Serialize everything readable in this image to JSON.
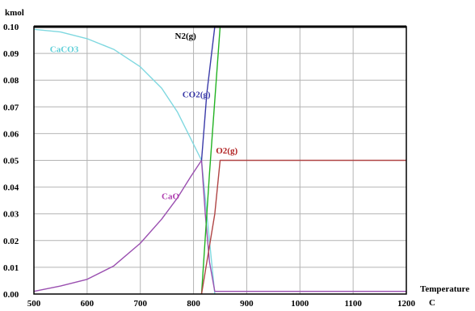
{
  "chart_data": {
    "type": "line",
    "title": "",
    "ylabel": "kmol",
    "xlabel": "Temperature",
    "xlabel_unit": "C",
    "xlim": [
      500,
      1200
    ],
    "ylim": [
      0,
      0.1
    ],
    "x_ticks": [
      "500",
      "600",
      "700",
      "800",
      "900",
      "1000",
      "1100",
      "1200"
    ],
    "y_ticks": [
      "0.00",
      "0.01",
      "0.02",
      "0.03",
      "0.04",
      "0.05",
      "0.06",
      "0.07",
      "0.08",
      "0.09",
      "0.10"
    ],
    "grid": true,
    "legend": "inline labels",
    "series": [
      {
        "name": "CaCO3",
        "color": "#7fd8e0",
        "points": [
          [
            500,
            0.099
          ],
          [
            550,
            0.098
          ],
          [
            600,
            0.0955
          ],
          [
            650,
            0.0915
          ],
          [
            700,
            0.085
          ],
          [
            740,
            0.077
          ],
          [
            770,
            0.068
          ],
          [
            795,
            0.058
          ],
          [
            815,
            0.05
          ],
          [
            825,
            0.03
          ],
          [
            835,
            0.01
          ],
          [
            840,
            0.0
          ]
        ]
      },
      {
        "name": "CaO",
        "color": "#9a4fb0",
        "points": [
          [
            500,
            0.001
          ],
          [
            550,
            0.003
          ],
          [
            600,
            0.0055
          ],
          [
            650,
            0.0105
          ],
          [
            700,
            0.019
          ],
          [
            740,
            0.028
          ],
          [
            770,
            0.036
          ],
          [
            795,
            0.044
          ],
          [
            815,
            0.05
          ],
          [
            822,
            0.03
          ],
          [
            830,
            0.012
          ],
          [
            840,
            0.001
          ],
          [
            1200,
            0.001
          ]
        ]
      },
      {
        "name": "CO2(g)",
        "color": "#3a3aa8",
        "points": [
          [
            815,
            0.05
          ],
          [
            825,
            0.075
          ],
          [
            840,
            0.1
          ],
          [
            1200,
            0.1
          ]
        ]
      },
      {
        "name": "N2(g)",
        "color": "#22b222",
        "points": [
          [
            815,
            0.0
          ],
          [
            830,
            0.045
          ],
          [
            850,
            0.1
          ],
          [
            1200,
            0.1
          ]
        ]
      },
      {
        "name": "O2(g)",
        "color": "#b04545",
        "points": [
          [
            815,
            0.0
          ],
          [
            840,
            0.03
          ],
          [
            850,
            0.05
          ],
          [
            1200,
            0.05
          ]
        ]
      }
    ],
    "labels": [
      {
        "text": "CaCO3",
        "x": 530,
        "y": 0.0905,
        "color": "#5fcfd8"
      },
      {
        "text": "N2(g)",
        "x": 765,
        "y": 0.0955,
        "color": "#000000"
      },
      {
        "text": "CO2(g)",
        "x": 779,
        "y": 0.0735,
        "color": "#3a3aa8"
      },
      {
        "text": "O2(g)",
        "x": 842,
        "y": 0.0525,
        "color": "#b02020"
      },
      {
        "text": "CaO",
        "x": 740,
        "y": 0.0355,
        "color": "#b040b0"
      }
    ]
  }
}
